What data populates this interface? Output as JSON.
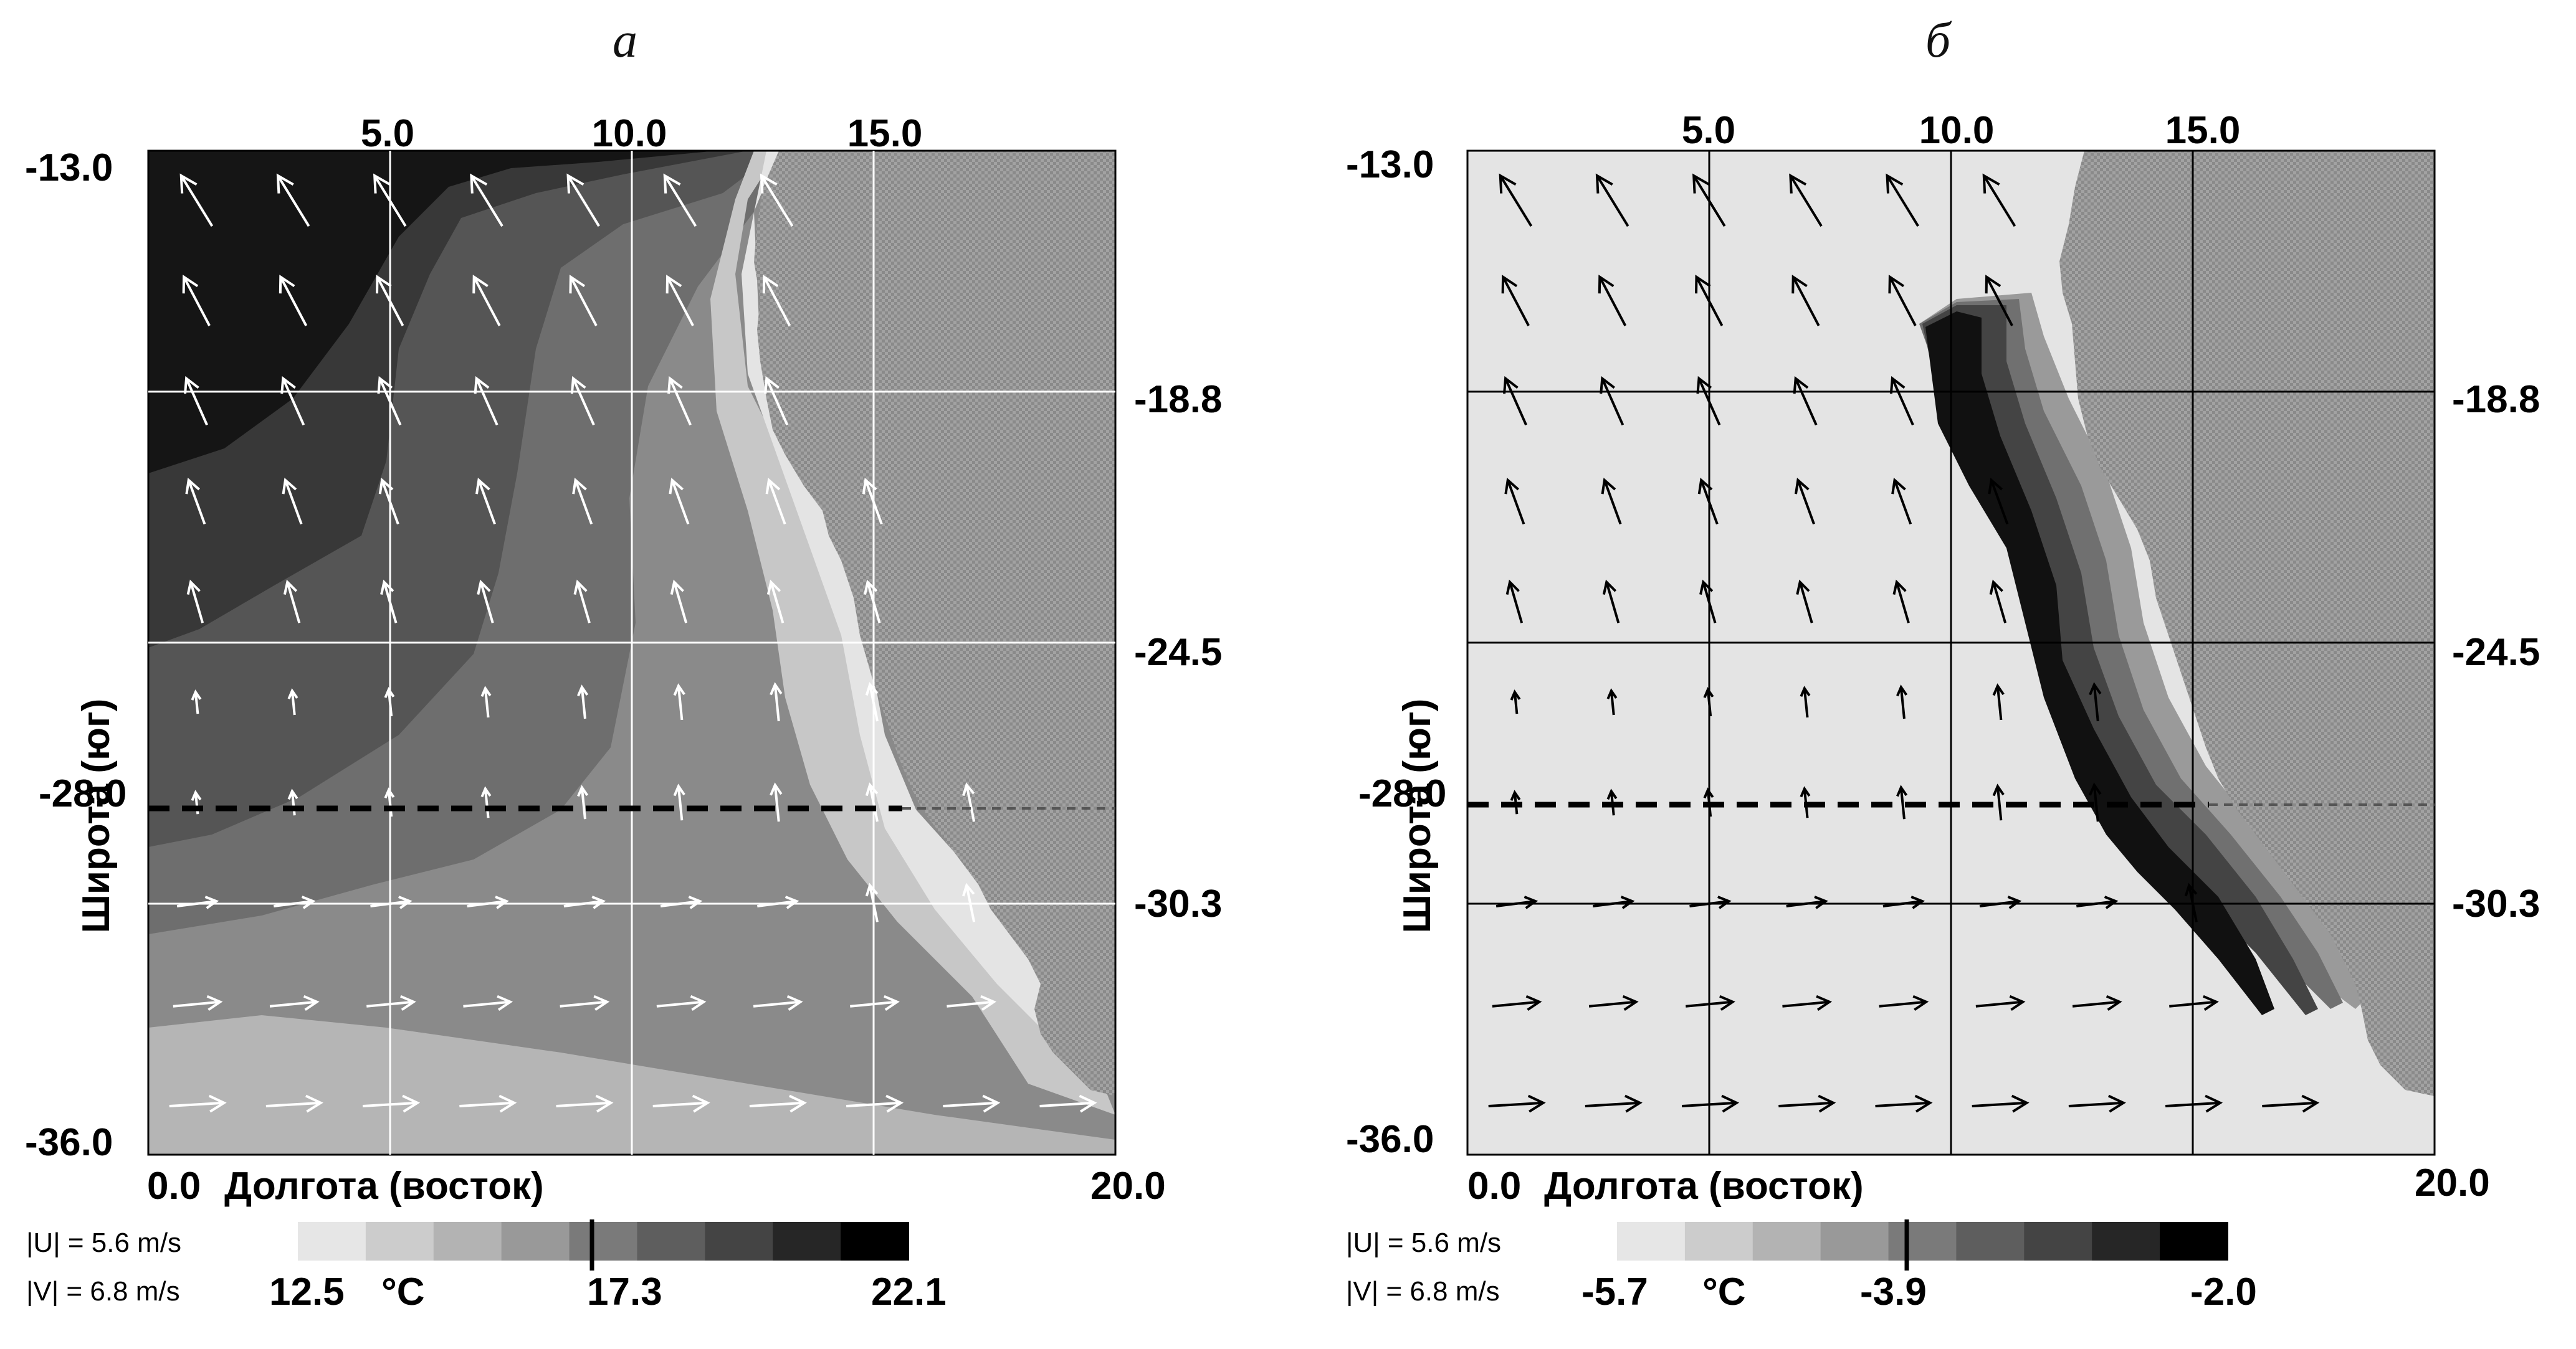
{
  "panels": [
    {
      "letter": "а",
      "lon_ticks": [
        "5.0",
        "10.0",
        "15.0"
      ],
      "lon_min": "0.0",
      "lon_max": "20.0",
      "lat_left": [
        "-13.0",
        "-28.0",
        "-36.0"
      ],
      "lat_right": [
        "-18.8",
        "-24.5",
        "-30.3"
      ],
      "xlabel": "Долгота (восток)",
      "ylabel": "Широта (юг)",
      "ref_u": "|U| = 5.6 m/s",
      "ref_v": "|V| = 6.8 m/s",
      "scale_min": "12.5",
      "scale_unit": "°C",
      "scale_mid": "17.3",
      "scale_max": "22.1",
      "scale_colors": [
        "#e6e6e6",
        "#cccccc",
        "#b3b3b3",
        "#999999",
        "#7a7a7a",
        "#5e5e5e",
        "#444444",
        "#262626",
        "#000000"
      ],
      "field": "temperature",
      "arrow_color": "#ffffff",
      "grid_color": "#ffffff"
    },
    {
      "letter": "б",
      "lon_ticks": [
        "5.0",
        "10.0",
        "15.0"
      ],
      "lon_min": "0.0",
      "lon_max": "20.0",
      "lat_left": [
        "-13.0",
        "-28.0",
        "-36.0"
      ],
      "lat_right": [
        "-18.8",
        "-24.5",
        "-30.3"
      ],
      "xlabel": "Долгота (восток)",
      "ylabel": "Широта (юг)",
      "ref_u": "|U| = 5.6 m/s",
      "ref_v": "|V| = 6.8 m/s",
      "scale_min": "-5.7",
      "scale_unit": "°C",
      "scale_mid": "-3.9",
      "scale_max": "-2.0",
      "scale_colors": [
        "#e6e6e6",
        "#cccccc",
        "#b3b3b3",
        "#999999",
        "#7a7a7a",
        "#5e5e5e",
        "#444444",
        "#262626",
        "#000000"
      ],
      "field": "anomaly",
      "arrow_color": "#000000",
      "grid_color": "#000000"
    }
  ]
}
